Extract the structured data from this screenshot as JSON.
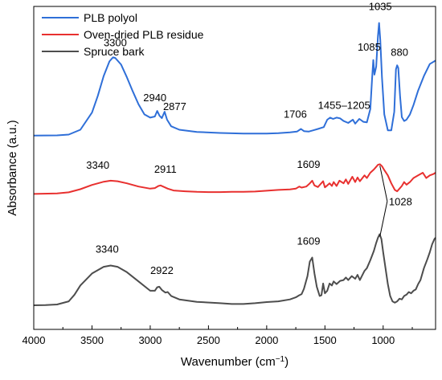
{
  "chart_data": {
    "type": "line",
    "xlabel": "Wavenumber (cm",
    "xlabel_sup": "−1",
    "xlabel_close": ")",
    "ylabel": "Absorbance (a.u.)",
    "xlim": [
      4000,
      550
    ],
    "x_reversed": true,
    "x_ticks": [
      4000,
      3500,
      3000,
      2500,
      2000,
      1500,
      1000
    ],
    "y_ticks_shown": false,
    "grid": false,
    "legend_placement": "top-left",
    "series": [
      {
        "name": "PLB polyol",
        "color": "#2f6fd8",
        "offset": 0.64,
        "points": [
          [
            4000,
            0.0
          ],
          [
            3800,
            0.001
          ],
          [
            3700,
            0.004
          ],
          [
            3600,
            0.022
          ],
          [
            3500,
            0.087
          ],
          [
            3450,
            0.15
          ],
          [
            3400,
            0.225
          ],
          [
            3350,
            0.28
          ],
          [
            3320,
            0.295
          ],
          [
            3300,
            0.293
          ],
          [
            3250,
            0.268
          ],
          [
            3200,
            0.22
          ],
          [
            3150,
            0.167
          ],
          [
            3100,
            0.118
          ],
          [
            3050,
            0.08
          ],
          [
            3000,
            0.068
          ],
          [
            2960,
            0.072
          ],
          [
            2940,
            0.093
          ],
          [
            2920,
            0.075
          ],
          [
            2900,
            0.066
          ],
          [
            2877,
            0.09
          ],
          [
            2855,
            0.06
          ],
          [
            2820,
            0.035
          ],
          [
            2750,
            0.022
          ],
          [
            2600,
            0.014
          ],
          [
            2400,
            0.01
          ],
          [
            2200,
            0.008
          ],
          [
            2000,
            0.008
          ],
          [
            1900,
            0.009
          ],
          [
            1800,
            0.012
          ],
          [
            1740,
            0.015
          ],
          [
            1706,
            0.025
          ],
          [
            1680,
            0.017
          ],
          [
            1640,
            0.015
          ],
          [
            1600,
            0.02
          ],
          [
            1560,
            0.025
          ],
          [
            1510,
            0.032
          ],
          [
            1480,
            0.06
          ],
          [
            1455,
            0.068
          ],
          [
            1430,
            0.063
          ],
          [
            1400,
            0.068
          ],
          [
            1370,
            0.065
          ],
          [
            1340,
            0.055
          ],
          [
            1300,
            0.048
          ],
          [
            1260,
            0.06
          ],
          [
            1240,
            0.045
          ],
          [
            1205,
            0.063
          ],
          [
            1170,
            0.052
          ],
          [
            1140,
            0.05
          ],
          [
            1110,
            0.1
          ],
          [
            1095,
            0.215
          ],
          [
            1085,
            0.285
          ],
          [
            1075,
            0.23
          ],
          [
            1060,
            0.26
          ],
          [
            1045,
            0.375
          ],
          [
            1035,
            0.425
          ],
          [
            1025,
            0.36
          ],
          [
            1010,
            0.22
          ],
          [
            990,
            0.08
          ],
          [
            960,
            0.02
          ],
          [
            930,
            0.02
          ],
          [
            905,
            0.09
          ],
          [
            890,
            0.25
          ],
          [
            880,
            0.265
          ],
          [
            870,
            0.255
          ],
          [
            855,
            0.15
          ],
          [
            840,
            0.07
          ],
          [
            820,
            0.055
          ],
          [
            800,
            0.06
          ],
          [
            770,
            0.08
          ],
          [
            740,
            0.115
          ],
          [
            700,
            0.17
          ],
          [
            650,
            0.225
          ],
          [
            600,
            0.27
          ],
          [
            550,
            0.283
          ]
        ]
      },
      {
        "name": "Oven-dried PLB residue",
        "color": "#e8302f",
        "offset": 0.42,
        "points": [
          [
            4000,
            0.0
          ],
          [
            3800,
            0.002
          ],
          [
            3700,
            0.006
          ],
          [
            3600,
            0.018
          ],
          [
            3500,
            0.034
          ],
          [
            3400,
            0.046
          ],
          [
            3340,
            0.05
          ],
          [
            3280,
            0.048
          ],
          [
            3200,
            0.04
          ],
          [
            3100,
            0.028
          ],
          [
            3000,
            0.02
          ],
          [
            2960,
            0.022
          ],
          [
            2930,
            0.03
          ],
          [
            2911,
            0.032
          ],
          [
            2880,
            0.026
          ],
          [
            2850,
            0.02
          ],
          [
            2800,
            0.013
          ],
          [
            2700,
            0.01
          ],
          [
            2600,
            0.008
          ],
          [
            2500,
            0.007
          ],
          [
            2400,
            0.007
          ],
          [
            2300,
            0.008
          ],
          [
            2200,
            0.008
          ],
          [
            2100,
            0.009
          ],
          [
            2000,
            0.012
          ],
          [
            1900,
            0.015
          ],
          [
            1800,
            0.017
          ],
          [
            1750,
            0.02
          ],
          [
            1720,
            0.028
          ],
          [
            1700,
            0.024
          ],
          [
            1660,
            0.028
          ],
          [
            1630,
            0.04
          ],
          [
            1609,
            0.05
          ],
          [
            1590,
            0.032
          ],
          [
            1560,
            0.026
          ],
          [
            1540,
            0.036
          ],
          [
            1515,
            0.048
          ],
          [
            1500,
            0.025
          ],
          [
            1480,
            0.032
          ],
          [
            1460,
            0.04
          ],
          [
            1440,
            0.03
          ],
          [
            1425,
            0.045
          ],
          [
            1400,
            0.03
          ],
          [
            1375,
            0.05
          ],
          [
            1340,
            0.04
          ],
          [
            1320,
            0.055
          ],
          [
            1300,
            0.038
          ],
          [
            1265,
            0.065
          ],
          [
            1240,
            0.045
          ],
          [
            1220,
            0.062
          ],
          [
            1200,
            0.048
          ],
          [
            1160,
            0.07
          ],
          [
            1140,
            0.06
          ],
          [
            1110,
            0.08
          ],
          [
            1080,
            0.092
          ],
          [
            1060,
            0.102
          ],
          [
            1045,
            0.11
          ],
          [
            1028,
            0.112
          ],
          [
            1010,
            0.105
          ],
          [
            990,
            0.09
          ],
          [
            960,
            0.07
          ],
          [
            930,
            0.04
          ],
          [
            900,
            0.015
          ],
          [
            880,
            0.01
          ],
          [
            860,
            0.02
          ],
          [
            840,
            0.03
          ],
          [
            820,
            0.045
          ],
          [
            800,
            0.035
          ],
          [
            770,
            0.045
          ],
          [
            740,
            0.06
          ],
          [
            700,
            0.07
          ],
          [
            660,
            0.08
          ],
          [
            630,
            0.06
          ],
          [
            600,
            0.07
          ],
          [
            570,
            0.075
          ],
          [
            550,
            0.08
          ]
        ]
      },
      {
        "name": "Spruce bark",
        "color": "#4d4d4d",
        "offset": 0.0,
        "points": [
          [
            4000,
            0.0
          ],
          [
            3900,
            0.001
          ],
          [
            3800,
            0.003
          ],
          [
            3700,
            0.015
          ],
          [
            3650,
            0.04
          ],
          [
            3600,
            0.075
          ],
          [
            3500,
            0.12
          ],
          [
            3400,
            0.145
          ],
          [
            3340,
            0.15
          ],
          [
            3280,
            0.145
          ],
          [
            3200,
            0.125
          ],
          [
            3100,
            0.09
          ],
          [
            3000,
            0.055
          ],
          [
            2960,
            0.055
          ],
          [
            2940,
            0.068
          ],
          [
            2922,
            0.07
          ],
          [
            2900,
            0.058
          ],
          [
            2870,
            0.048
          ],
          [
            2850,
            0.05
          ],
          [
            2820,
            0.035
          ],
          [
            2750,
            0.022
          ],
          [
            2600,
            0.013
          ],
          [
            2400,
            0.008
          ],
          [
            2300,
            0.005
          ],
          [
            2200,
            0.005
          ],
          [
            2100,
            0.008
          ],
          [
            2000,
            0.012
          ],
          [
            1900,
            0.015
          ],
          [
            1800,
            0.022
          ],
          [
            1750,
            0.03
          ],
          [
            1720,
            0.038
          ],
          [
            1700,
            0.042
          ],
          [
            1680,
            0.062
          ],
          [
            1650,
            0.11
          ],
          [
            1630,
            0.165
          ],
          [
            1609,
            0.18
          ],
          [
            1590,
            0.12
          ],
          [
            1570,
            0.07
          ],
          [
            1545,
            0.035
          ],
          [
            1530,
            0.038
          ],
          [
            1515,
            0.082
          ],
          [
            1500,
            0.045
          ],
          [
            1480,
            0.055
          ],
          [
            1460,
            0.082
          ],
          [
            1440,
            0.075
          ],
          [
            1425,
            0.09
          ],
          [
            1400,
            0.08
          ],
          [
            1370,
            0.092
          ],
          [
            1340,
            0.095
          ],
          [
            1320,
            0.105
          ],
          [
            1300,
            0.095
          ],
          [
            1270,
            0.11
          ],
          [
            1240,
            0.1
          ],
          [
            1220,
            0.115
          ],
          [
            1200,
            0.095
          ],
          [
            1160,
            0.13
          ],
          [
            1140,
            0.14
          ],
          [
            1110,
            0.17
          ],
          [
            1080,
            0.205
          ],
          [
            1060,
            0.235
          ],
          [
            1045,
            0.255
          ],
          [
            1030,
            0.268
          ],
          [
            1015,
            0.25
          ],
          [
            1000,
            0.2
          ],
          [
            980,
            0.14
          ],
          [
            960,
            0.08
          ],
          [
            940,
            0.035
          ],
          [
            920,
            0.015
          ],
          [
            900,
            0.01
          ],
          [
            880,
            0.015
          ],
          [
            860,
            0.025
          ],
          [
            840,
            0.022
          ],
          [
            820,
            0.035
          ],
          [
            800,
            0.04
          ],
          [
            780,
            0.05
          ],
          [
            760,
            0.045
          ],
          [
            740,
            0.055
          ],
          [
            720,
            0.06
          ],
          [
            700,
            0.08
          ],
          [
            680,
            0.095
          ],
          [
            650,
            0.14
          ],
          [
            620,
            0.175
          ],
          [
            600,
            0.2
          ],
          [
            580,
            0.23
          ],
          [
            560,
            0.25
          ],
          [
            550,
            0.255
          ]
        ]
      }
    ],
    "annotations": [
      {
        "text": "3300",
        "series": 0,
        "x": 3300
      },
      {
        "text": "2940",
        "series": 0,
        "x": 2960
      },
      {
        "text": "2877",
        "series": 0,
        "x": 2790
      },
      {
        "text": "1706",
        "series": 0,
        "x": 1755
      },
      {
        "text": "1455–1205",
        "series": 0,
        "x": 1335
      },
      {
        "text": "1085",
        "series": 0,
        "x": 1120
      },
      {
        "text": "1035",
        "series": 0,
        "x": 1025
      },
      {
        "text": "880",
        "series": 0,
        "x": 860
      },
      {
        "text": "3340",
        "series": 1,
        "x": 3450
      },
      {
        "text": "2911",
        "series": 1,
        "x": 2870
      },
      {
        "text": "1609",
        "series": 1,
        "x": 1640
      },
      {
        "text": "1028",
        "series": 1,
        "x": 920
      },
      {
        "text": "3340",
        "series": 2,
        "x": 3370
      },
      {
        "text": "2922",
        "series": 2,
        "x": 2900
      },
      {
        "text": "1609",
        "series": 2,
        "x": 1640
      }
    ]
  }
}
